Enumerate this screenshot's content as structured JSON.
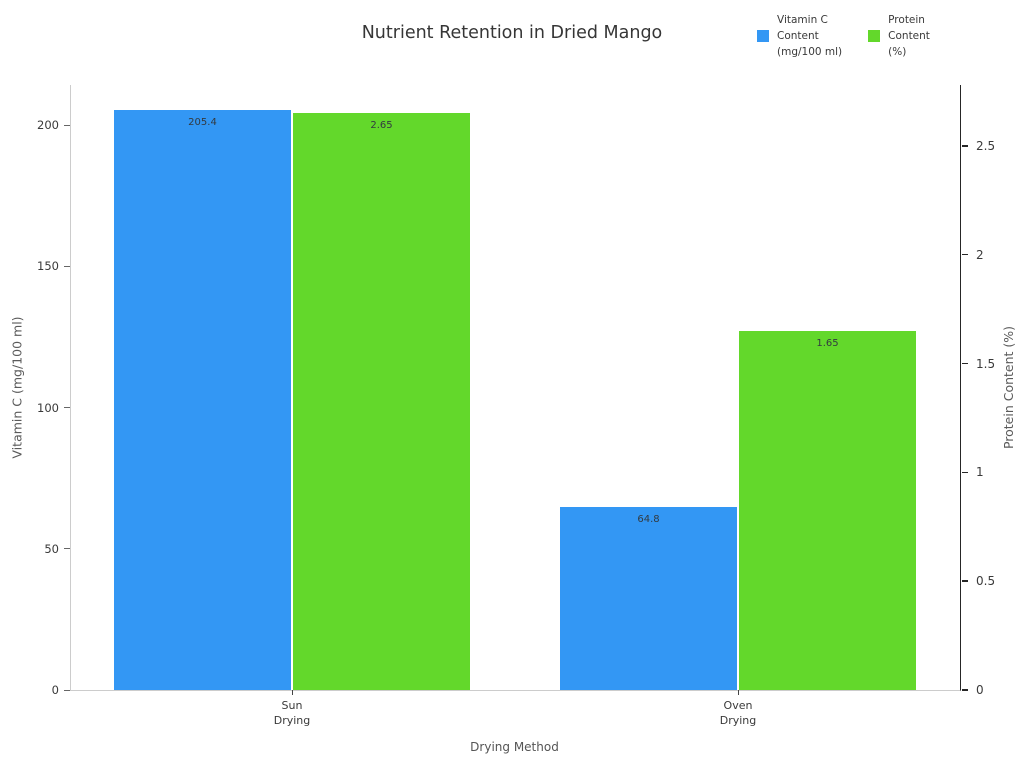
{
  "title": "Nutrient Retention in Dried Mango",
  "legend": {
    "position": "top-right",
    "entries": [
      {
        "label": "Vitamin C\nContent\n(mg/100 ml)",
        "color": "#3397f4"
      },
      {
        "label": "Protein\nContent\n(%)",
        "color": "#63d82b"
      }
    ]
  },
  "chart_data": {
    "type": "bar",
    "title": "Nutrient Retention in Dried Mango",
    "categories": [
      "Sun\nDrying",
      "Oven\nDrying"
    ],
    "series": [
      {
        "name": "Vitamin C Content (mg/100 ml)",
        "axis": "left",
        "color": "#3397f4",
        "values": [
          205.4,
          64.8
        ],
        "value_labels": [
          "205.4",
          "64.8"
        ]
      },
      {
        "name": "Protein Content (%)",
        "axis": "right",
        "color": "#63d82b",
        "values": [
          2.65,
          1.65
        ],
        "value_labels": [
          "2.65",
          "1.65"
        ]
      }
    ],
    "xlabel": "Drying Method",
    "left_axis": {
      "label": "Vitamin C (mg/100 ml)",
      "ticks": [
        0,
        50,
        100,
        150,
        200
      ],
      "range": [
        0,
        214.2
      ]
    },
    "right_axis": {
      "label": "Protein Content (%)",
      "ticks": [
        0,
        0.5,
        1,
        1.5,
        2,
        2.5
      ],
      "range": [
        0,
        2.78
      ]
    },
    "grid": false,
    "legend_position": "top-right",
    "bar_value_labels": true
  }
}
